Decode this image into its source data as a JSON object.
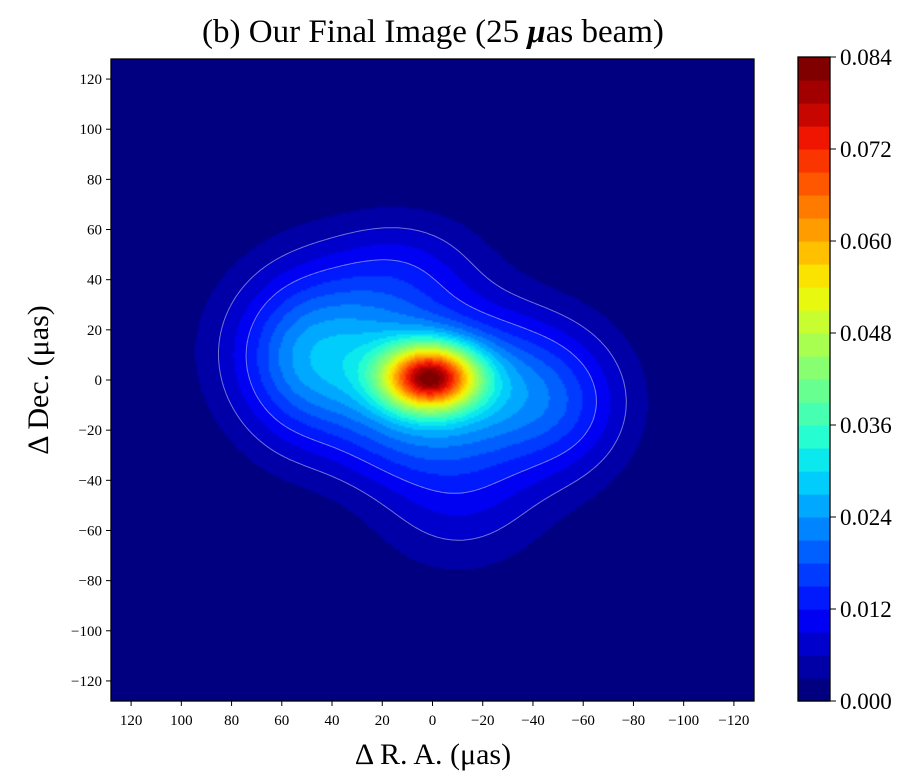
{
  "chart_data": {
    "type": "heatmap",
    "subtype": "filled-contour",
    "title_prefix": "(b) Our Final Image (25 ",
    "title_mu": "μ",
    "title_suffix": "as beam)",
    "xlabel": "Δ R. A.  (μas)",
    "ylabel": "Δ Dec.  (μas)",
    "xlim": [
      128,
      -128
    ],
    "ylim": [
      -128,
      128
    ],
    "x_ticks": [
      120,
      100,
      80,
      60,
      40,
      20,
      0,
      -20,
      -40,
      -60,
      -80,
      -100,
      -120
    ],
    "y_ticks": [
      120,
      100,
      80,
      60,
      40,
      20,
      0,
      -20,
      -40,
      -60,
      -80,
      -100,
      -120
    ],
    "x_tick_labels": [
      "120",
      "100",
      "80",
      "60",
      "40",
      "20",
      "0",
      "−20",
      "−40",
      "−60",
      "−80",
      "−100",
      "−120"
    ],
    "y_tick_labels": [
      "120",
      "100",
      "80",
      "60",
      "40",
      "20",
      "0",
      "−20",
      "−40",
      "−60",
      "−80",
      "−100",
      "−120"
    ],
    "colorbar": {
      "min": 0.0,
      "max": 0.084,
      "levels": 28,
      "ticks": [
        0.0,
        0.012,
        0.024,
        0.036,
        0.048,
        0.06,
        0.072,
        0.084
      ],
      "tick_labels": [
        "0.000",
        "0.012",
        "0.024",
        "0.036",
        "0.048",
        "0.060",
        "0.072",
        "0.084"
      ],
      "colormap": "jet",
      "colors": [
        "#000080",
        "#0000bd",
        "#0000fa",
        "#0033ff",
        "#006cff",
        "#00a6ff",
        "#00e0fb",
        "#29ffce",
        "#5dff9a",
        "#91ff66",
        "#c4ff33",
        "#f8f500",
        "#ffbe00",
        "#ff8700",
        "#ff4f00",
        "#f61800",
        "#b60000",
        "#800000"
      ]
    },
    "peak": {
      "x": 1,
      "y": 1,
      "value": 0.084
    },
    "components": [
      {
        "x": 1,
        "y": 1,
        "sx": 13,
        "sy": 9,
        "amp": 0.068
      },
      {
        "x": 3,
        "y": 0,
        "sx": 30,
        "sy": 20,
        "amp": 0.012
      },
      {
        "x": 38,
        "y": 12,
        "sx": 28,
        "sy": 24,
        "amp": 0.024
      },
      {
        "x": 55,
        "y": 5,
        "sx": 16,
        "sy": 24,
        "amp": 0.007
      },
      {
        "x": 10,
        "y": 45,
        "sx": 22,
        "sy": 16,
        "amp": 0.008
      },
      {
        "x": -28,
        "y": -5,
        "sx": 26,
        "sy": 22,
        "amp": 0.019
      },
      {
        "x": -55,
        "y": -12,
        "sx": 18,
        "sy": 20,
        "amp": 0.008
      },
      {
        "x": -10,
        "y": -48,
        "sx": 24,
        "sy": 20,
        "amp": 0.009
      },
      {
        "x": 12,
        "y": -25,
        "sx": 20,
        "sy": 14,
        "amp": 0.007
      }
    ],
    "outline_levels": [
      0.006,
      0.012
    ]
  }
}
